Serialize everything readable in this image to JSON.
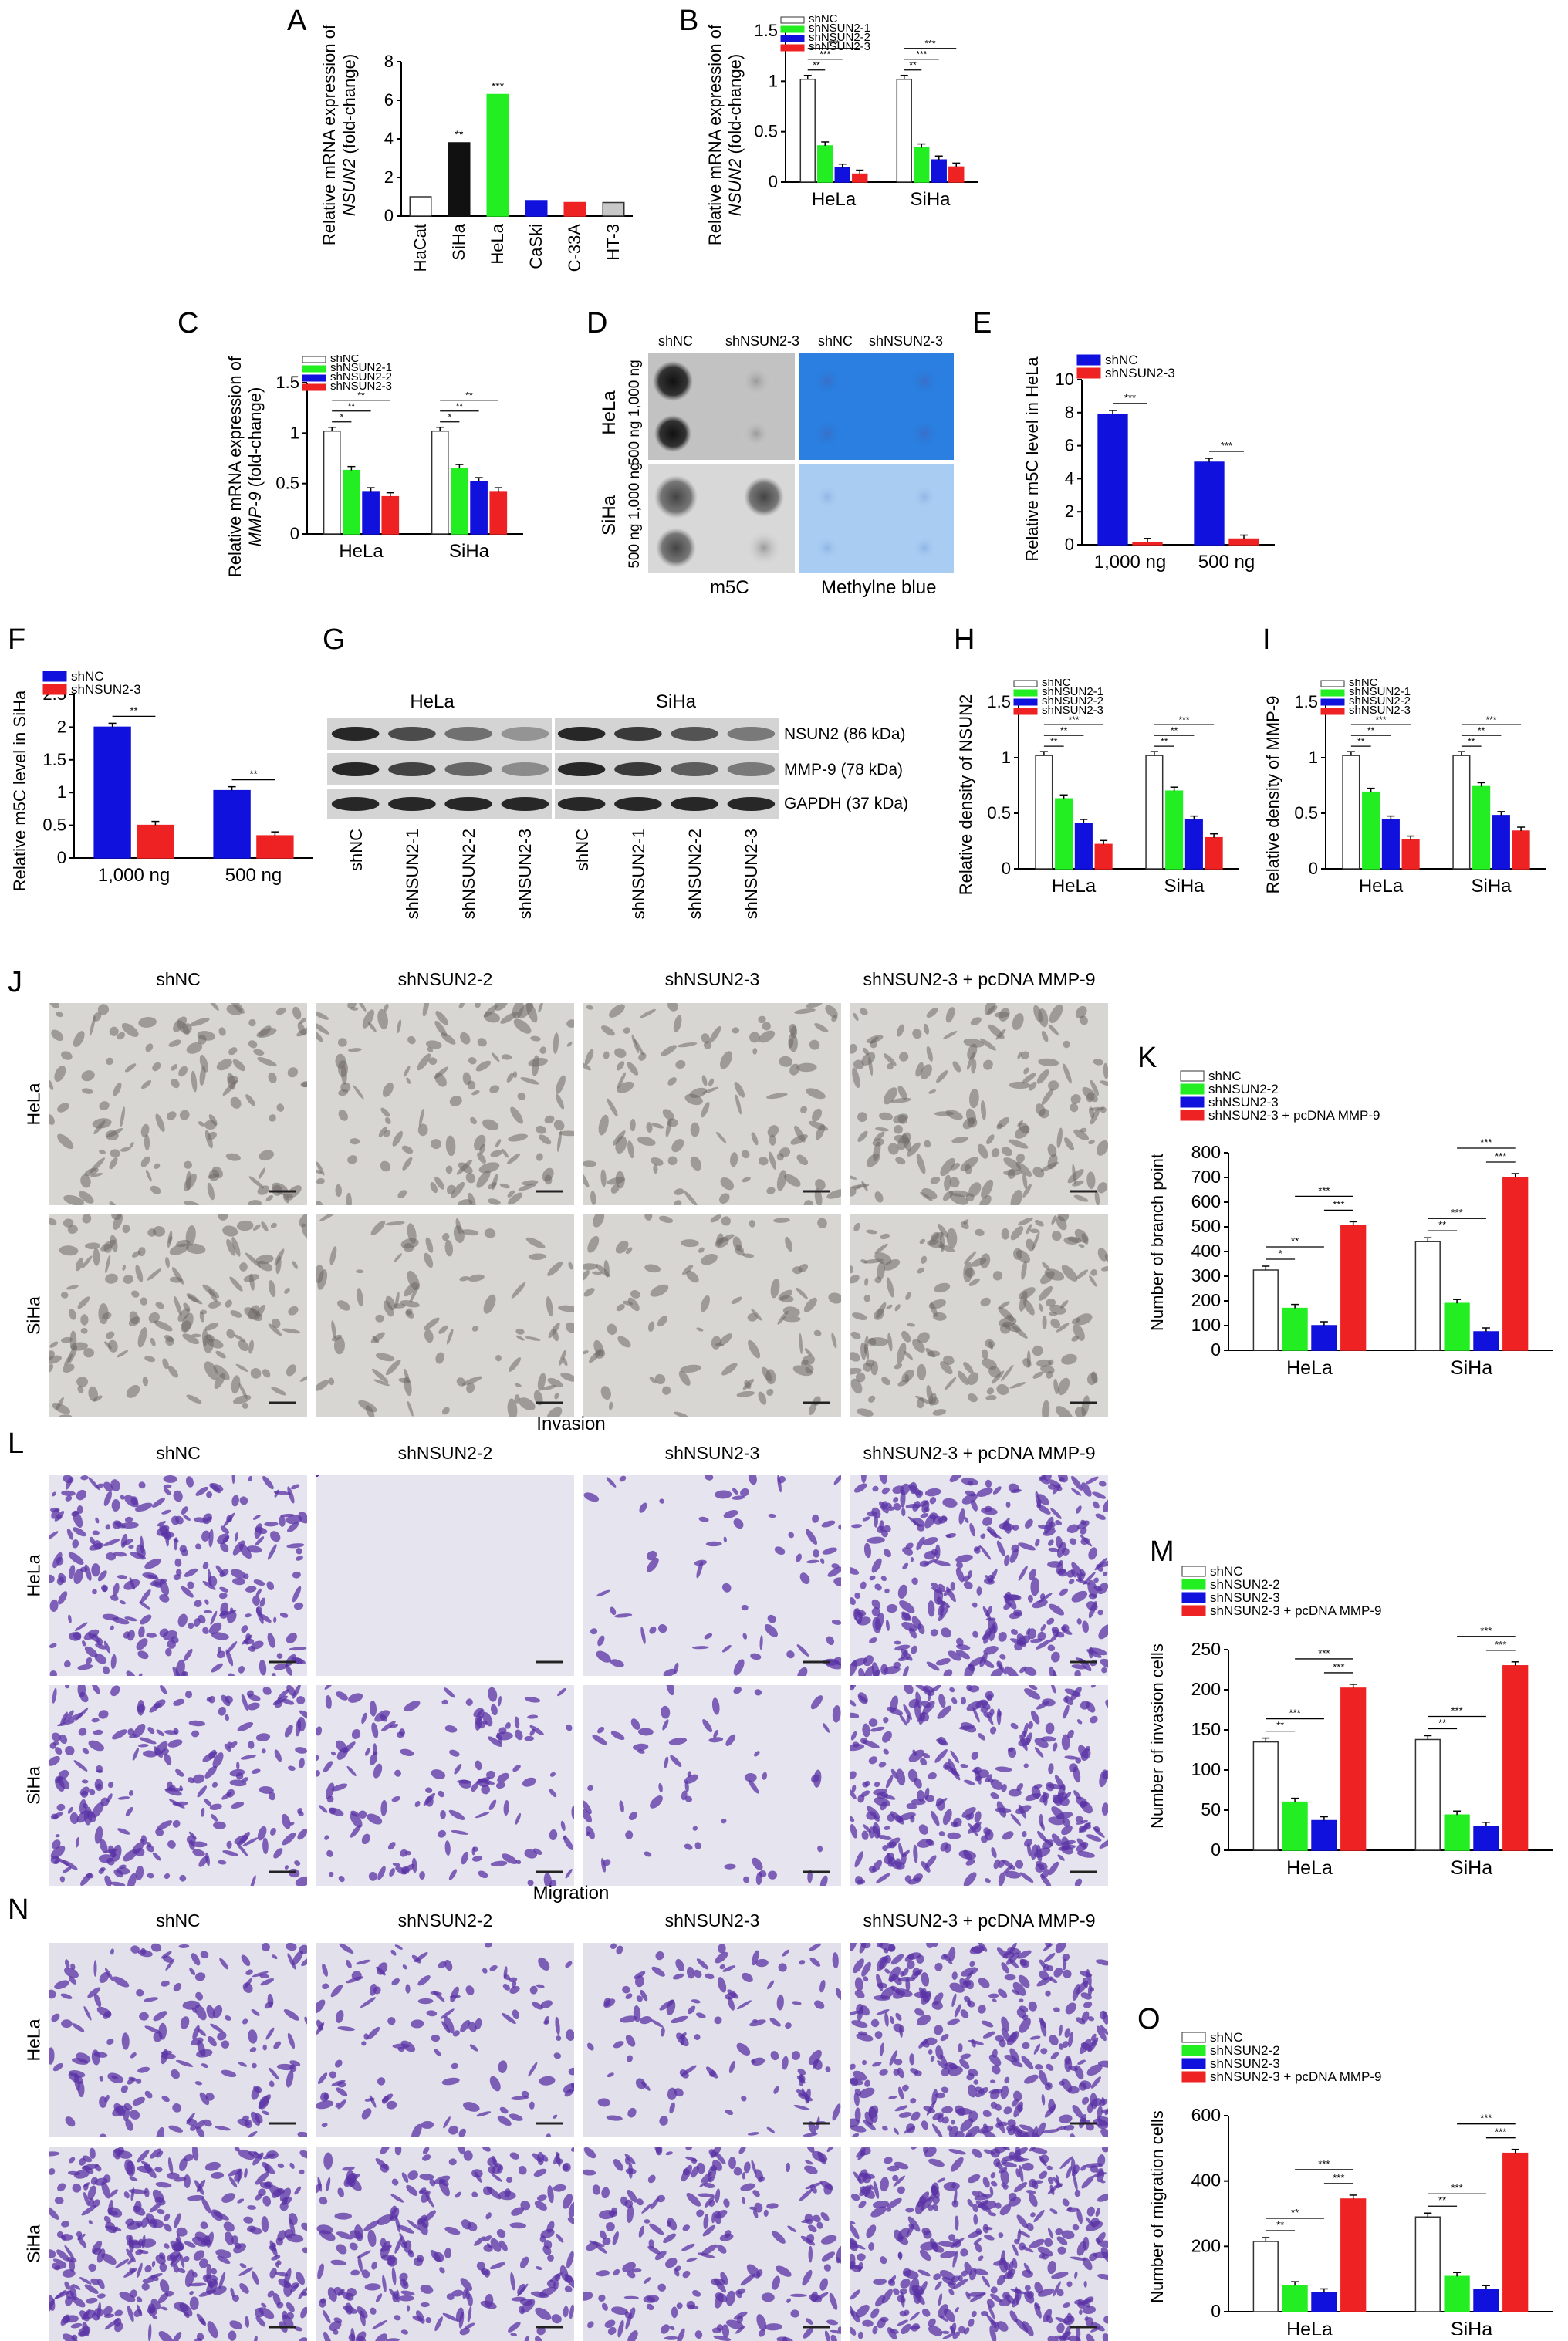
{
  "panels": [
    "A",
    "B",
    "C",
    "D",
    "E",
    "F",
    "G",
    "H",
    "I",
    "J",
    "K",
    "L",
    "M",
    "N",
    "O"
  ],
  "charts": {
    "A": {
      "ylabel_prefix": "Relative mRNA expression of",
      "ylabel_gene": "NSUN2",
      "ylabel_suffix": "(fold-change)"
    },
    "B": {
      "ylabel_prefix": "Relative mRNA expression of",
      "ylabel_gene": "NSUN2",
      "ylabel_suffix": "(fold-change)"
    },
    "C": {
      "ylabel_prefix": "Relative mRNA expression of",
      "ylabel_gene": "MMP-9",
      "ylabel_suffix": "(fold-change)"
    },
    "E": {
      "ylabel": "Relative m5C level in HeLa"
    },
    "F": {
      "ylabel": "Relative m5C level in SiHa"
    },
    "H": {
      "ylabel": "Relative density of NSUN2"
    },
    "I": {
      "ylabel": "Relative density of MMP-9"
    },
    "K": {
      "ylabel": "Number of branch point"
    },
    "M": {
      "ylabel": "Number of invasion cells"
    },
    "O": {
      "ylabel": "Number of migration cells"
    }
  },
  "panelD": {
    "col_labels": [
      "shNC",
      "shNSUN2-3",
      "shNC",
      "shNSUN2-3"
    ],
    "row_labels": [
      "HeLa",
      "SiHa"
    ],
    "row_doses": [
      "500 ng 1,000 ng",
      "500 ng 1,000 ng"
    ],
    "bottom_labels": [
      "m5C",
      "Methylne blue"
    ]
  },
  "panelG": {
    "cell_lines": [
      "HeLa",
      "SiHa"
    ],
    "bands": [
      "NSUN2 (86 kDa)",
      "MMP-9 (78 kDa)",
      "GAPDH (37 kDa)"
    ],
    "lanes": [
      "shNC",
      "shNSUN2-1",
      "shNSUN2-2",
      "shNSUN2-3",
      "shNC",
      "shNSUN2-1",
      "shNSUN2-2",
      "shNSUN2-3"
    ]
  },
  "micrographs": {
    "J": {
      "title": "",
      "cols": [
        "shNC",
        "shNSUN2-2",
        "shNSUN2-3",
        "shNSUN2-3 + pcDNA MMP-9"
      ],
      "rows": [
        "HeLa",
        "SiHa"
      ]
    },
    "L": {
      "title": "Invasion",
      "cols": [
        "shNC",
        "shNSUN2-2",
        "shNSUN2-3",
        "shNSUN2-3 + pcDNA MMP-9"
      ],
      "rows": [
        "HeLa",
        "SiHa"
      ]
    },
    "N": {
      "title": "Migration",
      "cols": [
        "shNC",
        "shNSUN2-2",
        "shNSUN2-3",
        "shNSUN2-3 + pcDNA MMP-9"
      ],
      "rows": [
        "HeLa",
        "SiHa"
      ]
    }
  },
  "colors": {
    "white": "#ffffff",
    "black": "#111111",
    "green": "#22ee22",
    "blue": "#1111dd",
    "red": "#ee2222",
    "gray": "#c8c8c8"
  },
  "chart_data": [
    {
      "panel": "A",
      "type": "bar",
      "categories": [
        "HaCat",
        "SiHa",
        "HeLa",
        "CaSki",
        "C-33A",
        "HT-3"
      ],
      "values": [
        1.0,
        3.8,
        6.3,
        0.8,
        0.7,
        0.7
      ],
      "colors": [
        "#ffffff",
        "#111111",
        "#22ee22",
        "#1111dd",
        "#ee2222",
        "#c8c8c8"
      ],
      "sig": [
        "",
        "**",
        "***",
        "",
        "",
        ""
      ],
      "ylim": [
        0,
        8
      ],
      "yticks": [
        0,
        2,
        4,
        6,
        8
      ]
    },
    {
      "panel": "B",
      "type": "bar",
      "categories": [
        "HeLa",
        "SiHa"
      ],
      "series": [
        {
          "name": "shNC",
          "values": [
            1.02,
            1.02
          ]
        },
        {
          "name": "shNSUN2-1",
          "values": [
            0.36,
            0.34
          ]
        },
        {
          "name": "shNSUN2-2",
          "values": [
            0.14,
            0.22
          ]
        },
        {
          "name": "shNSUN2-3",
          "values": [
            0.08,
            0.15
          ]
        }
      ],
      "sig": [
        "**",
        "***",
        "***"
      ],
      "ylim": [
        0,
        1.5
      ],
      "yticks": [
        0,
        0.5,
        1.0,
        1.5
      ],
      "legend": "top-left"
    },
    {
      "panel": "C",
      "type": "bar",
      "categories": [
        "HeLa",
        "SiHa"
      ],
      "series": [
        {
          "name": "shNC",
          "values": [
            1.02,
            1.02
          ]
        },
        {
          "name": "shNSUN2-1",
          "values": [
            0.63,
            0.65
          ]
        },
        {
          "name": "shNSUN2-2",
          "values": [
            0.42,
            0.52
          ]
        },
        {
          "name": "shNSUN2-3",
          "values": [
            0.37,
            0.42
          ]
        }
      ],
      "sig": [
        "*",
        "**",
        "**"
      ],
      "ylim": [
        0,
        1.5
      ],
      "yticks": [
        0,
        0.5,
        1.0,
        1.5
      ],
      "legend": "top-left"
    },
    {
      "panel": "E",
      "type": "bar",
      "categories": [
        "1,000 ng",
        "500 ng"
      ],
      "series": [
        {
          "name": "shNC",
          "values": [
            7.9,
            5.0
          ]
        },
        {
          "name": "shNSUN2-3",
          "values": [
            0.15,
            0.35
          ]
        }
      ],
      "sig": [
        "***"
      ],
      "ylim": [
        0,
        10
      ],
      "yticks": [
        0,
        2,
        4,
        6,
        8,
        10
      ],
      "legend": "top-left"
    },
    {
      "panel": "F",
      "type": "bar",
      "categories": [
        "1,000 ng",
        "500 ng"
      ],
      "series": [
        {
          "name": "shNC",
          "values": [
            2.0,
            1.03
          ]
        },
        {
          "name": "shNSUN2-3",
          "values": [
            0.5,
            0.34
          ]
        }
      ],
      "sig": [
        "**"
      ],
      "ylim": [
        0,
        2.5
      ],
      "yticks": [
        0,
        0.5,
        1.0,
        1.5,
        2.0,
        2.5
      ],
      "legend": "top-left"
    },
    {
      "panel": "H",
      "type": "bar",
      "categories": [
        "HeLa",
        "SiHa"
      ],
      "series": [
        {
          "name": "shNC",
          "values": [
            1.02,
            1.02
          ]
        },
        {
          "name": "shNSUN2-1",
          "values": [
            0.63,
            0.7
          ]
        },
        {
          "name": "shNSUN2-2",
          "values": [
            0.41,
            0.44
          ]
        },
        {
          "name": "shNSUN2-3",
          "values": [
            0.22,
            0.28
          ]
        }
      ],
      "sig": [
        "**",
        "**",
        "***"
      ],
      "ylim": [
        0,
        1.5
      ],
      "yticks": [
        0,
        0.5,
        1.0,
        1.5
      ],
      "legend": "top-left"
    },
    {
      "panel": "I",
      "type": "bar",
      "categories": [
        "HeLa",
        "SiHa"
      ],
      "series": [
        {
          "name": "shNC",
          "values": [
            1.02,
            1.02
          ]
        },
        {
          "name": "shNSUN2-1",
          "values": [
            0.69,
            0.74
          ]
        },
        {
          "name": "shNSUN2-2",
          "values": [
            0.44,
            0.48
          ]
        },
        {
          "name": "shNSUN2-3",
          "values": [
            0.26,
            0.34
          ]
        }
      ],
      "sig": [
        "**",
        "**",
        "***"
      ],
      "ylim": [
        0,
        1.5
      ],
      "yticks": [
        0,
        0.5,
        1.0,
        1.5
      ],
      "legend": "top-left"
    },
    {
      "panel": "K",
      "type": "bar",
      "categories": [
        "HeLa",
        "SiHa"
      ],
      "series": [
        {
          "name": "shNC",
          "values": [
            325,
            440
          ]
        },
        {
          "name": "shNSUN2-2",
          "values": [
            170,
            190
          ]
        },
        {
          "name": "shNSUN2-3",
          "values": [
            100,
            75
          ]
        },
        {
          "name": "shNSUN2-3 + pcDNA MMP-9",
          "values": [
            505,
            700
          ]
        }
      ],
      "sig_hela": [
        "*",
        "**",
        "***",
        "***"
      ],
      "sig_siha": [
        "**",
        "***",
        "***",
        "***"
      ],
      "ylim": [
        0,
        800
      ],
      "yticks": [
        0,
        100,
        200,
        300,
        400,
        500,
        600,
        700,
        800
      ],
      "legend": "top-left"
    },
    {
      "panel": "M",
      "type": "bar",
      "categories": [
        "HeLa",
        "SiHa"
      ],
      "series": [
        {
          "name": "shNC",
          "values": [
            135,
            138
          ]
        },
        {
          "name": "shNSUN2-2",
          "values": [
            60,
            44
          ]
        },
        {
          "name": "shNSUN2-3",
          "values": [
            37,
            30
          ]
        },
        {
          "name": "shNSUN2-3 + pcDNA MMP-9",
          "values": [
            202,
            230
          ]
        }
      ],
      "sig_hela": [
        "**",
        "***",
        "***",
        "***"
      ],
      "sig_siha": [
        "**",
        "***",
        "***",
        "***"
      ],
      "ylim": [
        0,
        250
      ],
      "yticks": [
        0,
        50,
        100,
        150,
        200,
        250
      ],
      "legend": "top-left"
    },
    {
      "panel": "O",
      "type": "bar",
      "categories": [
        "HeLa",
        "SiHa"
      ],
      "series": [
        {
          "name": "shNC",
          "values": [
            215,
            290
          ]
        },
        {
          "name": "shNSUN2-2",
          "values": [
            80,
            108
          ]
        },
        {
          "name": "shNSUN2-3",
          "values": [
            58,
            68
          ]
        },
        {
          "name": "shNSUN2-3 + pcDNA MMP-9",
          "values": [
            345,
            485
          ]
        }
      ],
      "sig_hela": [
        "**",
        "**",
        "***",
        "***"
      ],
      "sig_siha": [
        "**",
        "***",
        "***",
        "***"
      ],
      "ylim": [
        0,
        600
      ],
      "yticks": [
        0,
        200,
        400,
        600
      ],
      "legend": "top-left"
    }
  ]
}
